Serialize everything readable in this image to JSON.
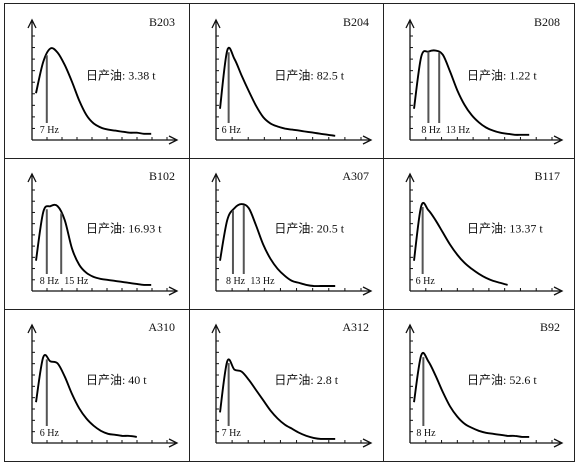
{
  "chart_data": [
    {
      "type": "line",
      "title": "B203",
      "annotation": "日产油: 3.38 t",
      "x": [
        0,
        1,
        2,
        3,
        4,
        5,
        6,
        7,
        8,
        9,
        10,
        11,
        12,
        13,
        14,
        15,
        16
      ],
      "series": [
        {
          "values": [
            0.45,
            0.75,
            0.88,
            0.84,
            0.72,
            0.56,
            0.38,
            0.24,
            0.16,
            0.12,
            0.1,
            0.09,
            0.08,
            0.07,
            0.07,
            0.06,
            0.06
          ]
        }
      ],
      "markers": [
        {
          "x": 1.5,
          "label": "7 Hz"
        }
      ]
    },
    {
      "type": "line",
      "title": "B204",
      "annotation": "日产油: 82.5 t",
      "x": [
        0,
        1,
        2,
        3,
        4,
        5,
        6,
        7,
        8,
        9,
        10,
        11,
        12,
        13,
        14,
        15,
        16
      ],
      "series": [
        {
          "values": [
            0.3,
            0.86,
            0.78,
            0.62,
            0.47,
            0.33,
            0.22,
            0.16,
            0.13,
            0.11,
            0.1,
            0.09,
            0.08,
            0.07,
            0.06,
            0.05,
            0.04
          ]
        }
      ],
      "markers": [
        {
          "x": 1.2,
          "label": "6 Hz"
        }
      ]
    },
    {
      "type": "line",
      "title": "B208",
      "annotation": "日产油: 1.22 t",
      "x": [
        0,
        1,
        2,
        3,
        4,
        5,
        6,
        7,
        8,
        9,
        10,
        11,
        12,
        13,
        14,
        15,
        16
      ],
      "series": [
        {
          "values": [
            0.3,
            0.8,
            0.85,
            0.86,
            0.82,
            0.66,
            0.48,
            0.34,
            0.24,
            0.17,
            0.12,
            0.09,
            0.07,
            0.06,
            0.05,
            0.05,
            0.05
          ]
        }
      ],
      "markers": [
        {
          "x": 2,
          "label": "8 Hz"
        },
        {
          "x": 3.5,
          "label": "13 Hz"
        }
      ]
    },
    {
      "type": "line",
      "title": "B102",
      "annotation": "日产油: 16.93 t",
      "x": [
        0,
        1,
        2,
        3,
        4,
        5,
        6,
        7,
        8,
        9,
        10,
        11,
        12,
        13,
        14,
        15,
        16
      ],
      "series": [
        {
          "values": [
            0.3,
            0.78,
            0.84,
            0.84,
            0.7,
            0.42,
            0.26,
            0.18,
            0.14,
            0.12,
            0.11,
            0.1,
            0.09,
            0.08,
            0.07,
            0.06,
            0.06
          ]
        }
      ],
      "markers": [
        {
          "x": 1.5,
          "label": "8 Hz"
        },
        {
          "x": 3.5,
          "label": "15 Hz"
        }
      ]
    },
    {
      "type": "line",
      "title": "A307",
      "annotation": "日产油: 20.5 t",
      "x": [
        0,
        1,
        2,
        3,
        4,
        5,
        6,
        7,
        8,
        9,
        10,
        11,
        12,
        13,
        14,
        15,
        16
      ],
      "series": [
        {
          "values": [
            0.3,
            0.7,
            0.82,
            0.86,
            0.82,
            0.65,
            0.46,
            0.32,
            0.22,
            0.15,
            0.1,
            0.08,
            0.06,
            0.05,
            0.05,
            0.05,
            0.05
          ]
        }
      ],
      "markers": [
        {
          "x": 1.8,
          "label": "8 Hz"
        },
        {
          "x": 3.3,
          "label": "13 Hz"
        }
      ]
    },
    {
      "type": "line",
      "title": "B117",
      "annotation": "日产油: 13.37 t",
      "x": [
        0,
        1,
        2,
        3,
        4,
        5,
        6,
        7,
        8,
        9,
        10,
        11,
        12,
        13
      ],
      "series": [
        {
          "values": [
            0.3,
            0.84,
            0.8,
            0.7,
            0.58,
            0.46,
            0.36,
            0.28,
            0.22,
            0.17,
            0.13,
            0.1,
            0.08,
            0.06
          ]
        }
      ],
      "markers": [
        {
          "x": 1.2,
          "label": "6 Hz"
        }
      ]
    },
    {
      "type": "line",
      "title": "A310",
      "annotation": "日产油: 40 t",
      "x": [
        0,
        1,
        2,
        3,
        4,
        5,
        6,
        7,
        8,
        9,
        10,
        11,
        12,
        13,
        14
      ],
      "series": [
        {
          "values": [
            0.4,
            0.84,
            0.8,
            0.78,
            0.65,
            0.48,
            0.34,
            0.24,
            0.17,
            0.12,
            0.09,
            0.08,
            0.07,
            0.07,
            0.06
          ]
        }
      ],
      "markers": [
        {
          "x": 1.5,
          "label": "6 Hz"
        }
      ]
    },
    {
      "type": "line",
      "title": "A312",
      "annotation": "日产油: 2.8 t",
      "x": [
        0,
        1,
        2,
        3,
        4,
        5,
        6,
        7,
        8,
        9,
        10,
        11,
        12,
        13,
        14,
        15,
        16
      ],
      "series": [
        {
          "values": [
            0.3,
            0.8,
            0.72,
            0.7,
            0.62,
            0.52,
            0.42,
            0.32,
            0.24,
            0.18,
            0.14,
            0.1,
            0.07,
            0.05,
            0.04,
            0.04,
            0.04
          ]
        }
      ],
      "markers": [
        {
          "x": 1.2,
          "label": "7 Hz"
        }
      ]
    },
    {
      "type": "line",
      "title": "B92",
      "annotation": "日产油: 52.6 t",
      "x": [
        0,
        1,
        2,
        3,
        4,
        5,
        6,
        7,
        8,
        9,
        10,
        11,
        12,
        13,
        14,
        15,
        16
      ],
      "series": [
        {
          "values": [
            0.4,
            0.86,
            0.8,
            0.66,
            0.5,
            0.36,
            0.26,
            0.19,
            0.15,
            0.12,
            0.1,
            0.09,
            0.08,
            0.07,
            0.07,
            0.06,
            0.06
          ]
        }
      ],
      "markers": [
        {
          "x": 1.3,
          "label": "8 Hz"
        }
      ]
    }
  ]
}
